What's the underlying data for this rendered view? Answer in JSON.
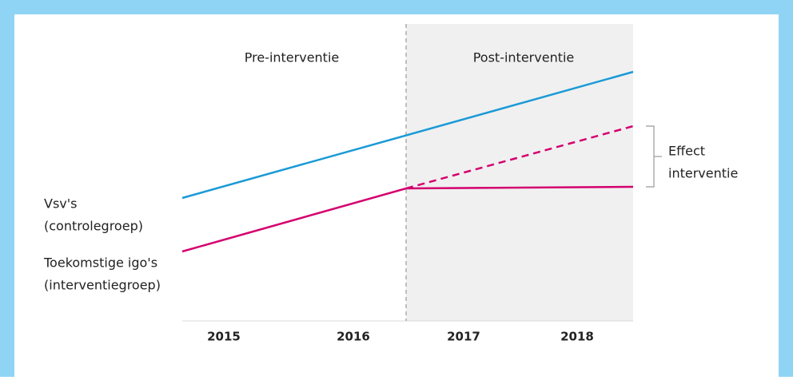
{
  "periods": {
    "pre": "Pre-interventie",
    "post": "Post-interventie"
  },
  "years": [
    "2015",
    "2016",
    "2017",
    "2018"
  ],
  "groups": [
    {
      "lines": [
        "Vsv's",
        "(controlegroep)"
      ]
    },
    {
      "lines": [
        "Toekomstige igo's",
        "(interventiegroep)"
      ]
    }
  ],
  "effect": [
    "Effect",
    "interventie"
  ]
}
